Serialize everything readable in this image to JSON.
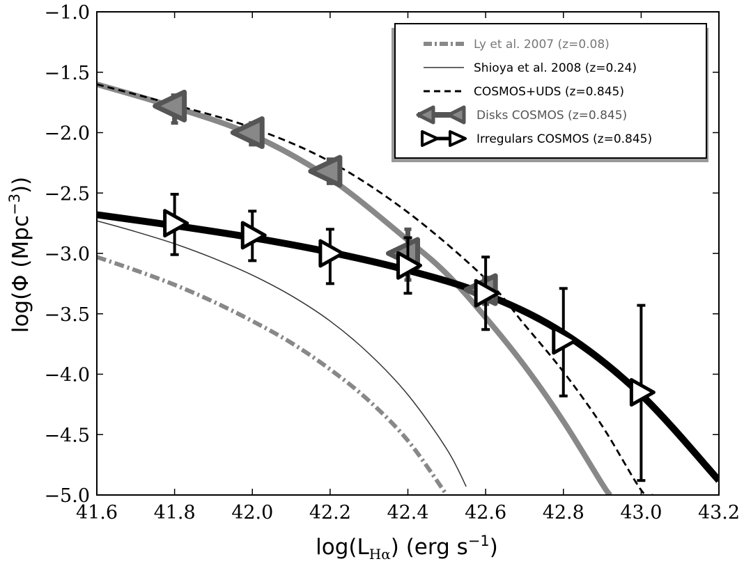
{
  "chart_data": {
    "type": "line",
    "title": "",
    "xlabel": {
      "prefix": "log(L",
      "sub": "Hα",
      "suffix": ") (erg s",
      "sup": "−1",
      "end": ")"
    },
    "ylabel": {
      "prefix": "log(Φ (Mpc",
      "sup": "−3",
      "end": "))"
    },
    "xlim": [
      41.6,
      43.2
    ],
    "ylim": [
      -5.0,
      -1.0
    ],
    "xticks": [
      41.6,
      41.8,
      42.0,
      42.2,
      42.4,
      42.6,
      42.8,
      43.0,
      43.2
    ],
    "xtick_labels": [
      "41.6",
      "41.8",
      "42.0",
      "42.2",
      "42.4",
      "42.6",
      "42.8",
      "43.0",
      "43.2"
    ],
    "yticks": [
      -1.0,
      -1.5,
      -2.0,
      -2.5,
      -3.0,
      -3.5,
      -4.0,
      -4.5,
      -5.0
    ],
    "ytick_labels": [
      "−1.0",
      "−1.5",
      "−2.0",
      "−2.5",
      "−3.0",
      "−3.5",
      "−4.0",
      "−4.5",
      "−5.0"
    ],
    "legend": {
      "position": "top-right",
      "entries": [
        {
          "label": "Ly et al. 2007 (z=0.08)",
          "style": "dashdot",
          "color": "#888888",
          "text_color": "#777777"
        },
        {
          "label": "Shioya et al. 2008 (z=0.24)",
          "style": "thin-solid",
          "color": "#333333",
          "text_color": "#000000"
        },
        {
          "label": "COSMOS+UDS (z=0.845)",
          "style": "dashed",
          "color": "#000000",
          "text_color": "#000000"
        },
        {
          "label": "Disks COSMOS (z=0.845)",
          "style": "triangle-left-line",
          "color": "#555555",
          "text_color": "#555555"
        },
        {
          "label": "Irregulars COSMOS (z=0.845)",
          "style": "triangle-right-line",
          "color": "#000000",
          "text_color": "#000000"
        }
      ]
    },
    "series": [
      {
        "name": "Ly et al. 2007 (z=0.08)",
        "kind": "curve",
        "color": "#888888",
        "x": [
          41.6,
          41.7,
          41.8,
          41.9,
          42.0,
          42.1,
          42.2,
          42.3,
          42.4,
          42.5
        ],
        "y": [
          -3.03,
          -3.14,
          -3.26,
          -3.4,
          -3.56,
          -3.74,
          -3.96,
          -4.22,
          -4.55,
          -5.0
        ]
      },
      {
        "name": "Shioya et al. 2008 (z=0.24)",
        "kind": "curve",
        "color": "#333333",
        "x": [
          41.6,
          41.7,
          41.8,
          41.9,
          42.0,
          42.1,
          42.2,
          42.3,
          42.4,
          42.5,
          42.55
        ],
        "y": [
          -2.73,
          -2.82,
          -2.92,
          -3.04,
          -3.18,
          -3.35,
          -3.56,
          -3.83,
          -4.17,
          -4.62,
          -4.93
        ]
      },
      {
        "name": "COSMOS+UDS (z=0.845)",
        "kind": "curve",
        "color": "#000000",
        "x": [
          41.6,
          41.8,
          42.0,
          42.2,
          42.4,
          42.6,
          42.7,
          42.8,
          42.9,
          43.0,
          43.03
        ],
        "y": [
          -1.6,
          -1.77,
          -1.96,
          -2.24,
          -2.66,
          -3.21,
          -3.59,
          -3.98,
          -4.43,
          -4.96,
          -5.0
        ]
      },
      {
        "name": "Disks COSMOS fit",
        "kind": "curve",
        "color": "#888888",
        "x": [
          41.6,
          41.8,
          42.0,
          42.2,
          42.4,
          42.5,
          42.6,
          42.7,
          42.8,
          42.9,
          42.92
        ],
        "y": [
          -1.6,
          -1.79,
          -2.02,
          -2.38,
          -2.89,
          -3.17,
          -3.53,
          -3.93,
          -4.39,
          -4.91,
          -5.0
        ]
      },
      {
        "name": "Irregulars COSMOS fit",
        "kind": "curve",
        "color": "#000000",
        "x": [
          41.6,
          41.8,
          42.0,
          42.2,
          42.4,
          42.6,
          42.8,
          43.0,
          43.2
        ],
        "y": [
          -2.68,
          -2.77,
          -2.87,
          -2.99,
          -3.14,
          -3.34,
          -3.66,
          -4.17,
          -4.88
        ]
      },
      {
        "name": "Disks COSMOS (z=0.845)",
        "kind": "points",
        "marker": "triangle-left",
        "color": "#555555",
        "x": [
          41.8,
          42.0,
          42.2,
          42.4,
          42.6
        ],
        "y": [
          -1.78,
          -2.0,
          -2.32,
          -3.0,
          -3.3
        ],
        "yerr_low": [
          -1.92,
          -2.1,
          -2.42,
          -3.22,
          -3.42
        ],
        "yerr_high": [
          -1.69,
          -1.92,
          -2.22,
          -2.8,
          -3.2
        ]
      },
      {
        "name": "Irregulars COSMOS (z=0.845)",
        "kind": "points",
        "marker": "triangle-right",
        "color": "#000000",
        "x": [
          41.8,
          42.0,
          42.2,
          42.4,
          42.6,
          42.8,
          43.0
        ],
        "y": [
          -2.75,
          -2.85,
          -3.0,
          -3.1,
          -3.33,
          -3.72,
          -4.15
        ],
        "yerr_low": [
          -3.01,
          -3.06,
          -3.25,
          -3.33,
          -3.63,
          -4.18,
          -4.88
        ],
        "yerr_high": [
          -2.51,
          -2.65,
          -2.8,
          -2.87,
          -3.03,
          -3.29,
          -3.43
        ]
      }
    ]
  }
}
